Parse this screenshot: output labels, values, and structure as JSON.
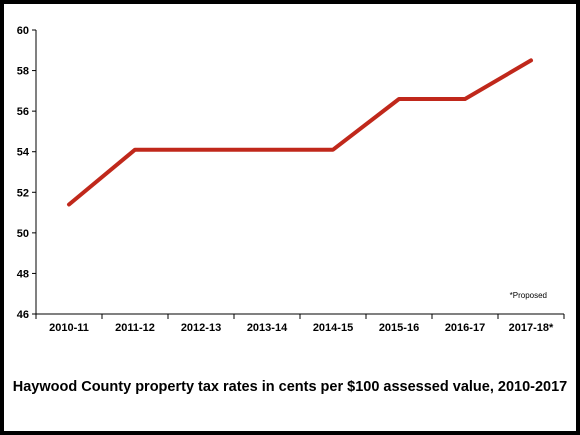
{
  "chart_data": {
    "type": "line",
    "categories": [
      "2010-11",
      "2011-12",
      "2012-13",
      "2013-14",
      "2014-15",
      "2015-16",
      "2016-17",
      "2017-18*"
    ],
    "series": [
      {
        "values": [
          51.4,
          54.1,
          54.1,
          54.1,
          54.1,
          56.6,
          56.6,
          58.5
        ],
        "color": "#c0281b"
      }
    ],
    "ylim": [
      46,
      60
    ],
    "yticks": [
      46,
      48,
      50,
      52,
      54,
      56,
      58,
      60
    ],
    "grid": false,
    "annotation": "*Proposed",
    "caption": "Haywood County property tax rates in cents per $100 assessed value, 2010-2017"
  }
}
